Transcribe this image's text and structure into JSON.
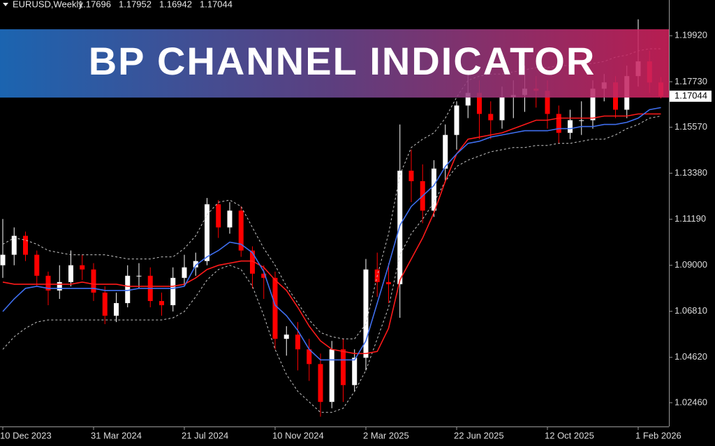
{
  "chart_data": {
    "type": "candlestick",
    "symbol": "EURUSD,Weekly",
    "banner": "BP CHANNEL INDICATOR",
    "background": "#000000",
    "up_color": "#ffffff",
    "down_color": "#ff0000",
    "categories": [
      "10 Dec 2023",
      null,
      null,
      null,
      null,
      null,
      null,
      null,
      "31 Mar 2024",
      null,
      null,
      null,
      null,
      null,
      null,
      null,
      "21 Jul 2024",
      null,
      null,
      null,
      null,
      null,
      null,
      null,
      "10 Nov 2024",
      null,
      null,
      null,
      null,
      null,
      null,
      null,
      "2 Mar 2025",
      null,
      null,
      null,
      null,
      null,
      null,
      null,
      "22 Jun 2025",
      null,
      null,
      null,
      null,
      null,
      null,
      null,
      "12 Oct 2025",
      null,
      null,
      null,
      null,
      null,
      null,
      null,
      "1 Feb 2026",
      null,
      null
    ],
    "open": [
      1.09,
      1.095,
      1.104,
      1.095,
      1.085,
      1.078,
      1.082,
      1.09,
      1.088,
      1.077,
      1.066,
      1.072,
      1.085,
      1.085,
      1.073,
      1.071,
      1.084,
      1.089,
      1.092,
      1.119,
      1.108,
      1.116,
      1.097,
      1.086,
      1.084,
      1.055,
      1.057,
      1.05,
      1.043,
      1.025,
      1.05,
      1.033,
      1.046,
      1.088,
      1.082,
      1.081,
      1.135,
      1.13,
      1.116,
      1.136,
      1.152,
      1.166,
      1.172,
      1.162,
      1.159,
      1.17,
      1.171,
      1.174,
      1.173,
      1.162,
      1.153,
      1.159,
      1.159,
      1.174,
      1.177,
      1.164,
      1.18,
      1.187,
      1.17696
    ],
    "high": [
      1.112,
      1.108,
      1.106,
      1.097,
      1.087,
      1.09,
      1.097,
      1.095,
      1.091,
      1.08,
      1.077,
      1.09,
      1.091,
      1.089,
      1.077,
      1.089,
      1.095,
      1.096,
      1.122,
      1.121,
      1.12,
      1.118,
      1.099,
      1.09,
      1.087,
      1.061,
      1.063,
      1.055,
      1.048,
      1.054,
      1.055,
      1.05,
      1.093,
      1.096,
      1.091,
      1.157,
      1.145,
      1.138,
      1.14,
      1.157,
      1.168,
      1.183,
      1.178,
      1.168,
      1.175,
      1.178,
      1.185,
      1.18,
      1.178,
      1.166,
      1.164,
      1.168,
      1.178,
      1.181,
      1.18,
      1.185,
      1.207,
      1.192,
      1.17952
    ],
    "low": [
      1.084,
      1.09,
      1.092,
      1.08,
      1.071,
      1.074,
      1.08,
      1.083,
      1.073,
      1.062,
      1.063,
      1.07,
      1.079,
      1.07,
      1.066,
      1.068,
      1.08,
      1.085,
      1.09,
      1.103,
      1.105,
      1.094,
      1.079,
      1.074,
      1.05,
      1.047,
      1.04,
      1.035,
      1.018,
      1.022,
      1.025,
      1.03,
      1.04,
      1.075,
      1.072,
      1.065,
      1.12,
      1.11,
      1.113,
      1.13,
      1.145,
      1.16,
      1.15,
      1.15,
      1.155,
      1.16,
      1.163,
      1.165,
      1.155,
      1.148,
      1.15,
      1.152,
      1.155,
      1.168,
      1.16,
      1.16,
      1.175,
      1.172,
      1.16942
    ],
    "close": [
      1.095,
      1.104,
      1.095,
      1.085,
      1.078,
      1.082,
      1.09,
      1.088,
      1.077,
      1.066,
      1.072,
      1.085,
      1.085,
      1.073,
      1.071,
      1.084,
      1.089,
      1.092,
      1.119,
      1.108,
      1.116,
      1.097,
      1.086,
      1.084,
      1.055,
      1.057,
      1.05,
      1.043,
      1.025,
      1.05,
      1.033,
      1.046,
      1.088,
      1.082,
      1.081,
      1.135,
      1.13,
      1.116,
      1.136,
      1.152,
      1.166,
      1.172,
      1.162,
      1.159,
      1.17,
      1.171,
      1.174,
      1.173,
      1.162,
      1.153,
      1.159,
      1.159,
      1.174,
      1.177,
      1.164,
      1.18,
      1.187,
      1.17696,
      1.17044
    ],
    "lines": [
      {
        "color": "#c8c8c8",
        "dashed": true,
        "values": [
          1.1,
          1.103,
          1.102,
          1.1,
          1.097,
          1.096,
          1.095,
          1.095,
          1.095,
          1.095,
          1.094,
          1.093,
          1.093,
          1.093,
          1.094,
          1.094,
          1.098,
          1.104,
          1.114,
          1.12,
          1.121,
          1.118,
          1.108,
          1.098,
          1.09,
          1.08,
          1.072,
          1.064,
          1.058,
          1.056,
          1.055,
          1.055,
          1.062,
          1.085,
          1.105,
          1.133,
          1.146,
          1.15,
          1.153,
          1.16,
          1.17,
          1.178,
          1.18,
          1.181,
          1.181,
          1.182,
          1.183,
          1.184,
          1.184,
          1.185,
          1.185,
          1.186,
          1.186,
          1.187,
          1.189,
          1.19,
          1.192,
          1.193,
          1.193
        ]
      },
      {
        "color": "#c8c8c8",
        "dashed": true,
        "values": [
          1.05,
          1.056,
          1.06,
          1.063,
          1.064,
          1.064,
          1.064,
          1.064,
          1.064,
          1.064,
          1.064,
          1.064,
          1.064,
          1.064,
          1.064,
          1.065,
          1.068,
          1.075,
          1.083,
          1.088,
          1.09,
          1.088,
          1.08,
          1.066,
          1.05,
          1.038,
          1.03,
          1.025,
          1.02,
          1.02,
          1.022,
          1.03,
          1.04,
          1.055,
          1.07,
          1.095,
          1.105,
          1.112,
          1.12,
          1.13,
          1.137,
          1.14,
          1.142,
          1.144,
          1.145,
          1.146,
          1.146,
          1.147,
          1.147,
          1.148,
          1.148,
          1.149,
          1.15,
          1.15,
          1.152,
          1.155,
          1.157,
          1.16,
          1.161
        ]
      },
      {
        "color": "#ff1a1a",
        "dashed": false,
        "values": [
          1.082,
          1.081,
          1.081,
          1.081,
          1.081,
          1.081,
          1.081,
          1.082,
          1.081,
          1.081,
          1.081,
          1.08,
          1.08,
          1.08,
          1.08,
          1.08,
          1.081,
          1.084,
          1.088,
          1.09,
          1.091,
          1.092,
          1.092,
          1.089,
          1.083,
          1.078,
          1.07,
          1.061,
          1.054,
          1.05,
          1.049,
          1.048,
          1.048,
          1.049,
          1.06,
          1.083,
          1.093,
          1.103,
          1.115,
          1.13,
          1.143,
          1.15,
          1.151,
          1.152,
          1.153,
          1.155,
          1.157,
          1.159,
          1.159,
          1.16,
          1.16,
          1.16,
          1.16,
          1.161,
          1.161,
          1.161,
          1.162,
          1.162,
          1.162
        ]
      },
      {
        "color": "#3f6ff0",
        "dashed": false,
        "values": [
          1.068,
          1.074,
          1.079,
          1.08,
          1.079,
          1.079,
          1.079,
          1.079,
          1.079,
          1.078,
          1.078,
          1.078,
          1.079,
          1.079,
          1.079,
          1.079,
          1.08,
          1.09,
          1.094,
          1.097,
          1.101,
          1.1,
          1.096,
          1.087,
          1.071,
          1.066,
          1.059,
          1.05,
          1.045,
          1.045,
          1.045,
          1.045,
          1.054,
          1.072,
          1.09,
          1.109,
          1.118,
          1.123,
          1.128,
          1.137,
          1.143,
          1.148,
          1.149,
          1.151,
          1.152,
          1.153,
          1.154,
          1.154,
          1.154,
          1.155,
          1.155,
          1.156,
          1.156,
          1.157,
          1.157,
          1.158,
          1.16,
          1.164,
          1.165
        ]
      }
    ],
    "ylim": [
      1.0133,
      1.2162
    ],
    "yticks": [
      {
        "value": 1.0246,
        "label": "1.02460"
      },
      {
        "value": 1.0462,
        "label": "1.04620"
      },
      {
        "value": 1.0681,
        "label": "1.06810"
      },
      {
        "value": 1.09,
        "label": "1.09000"
      },
      {
        "value": 1.1119,
        "label": "1.11190"
      },
      {
        "value": 1.1338,
        "label": "1.13380"
      },
      {
        "value": 1.1557,
        "label": "1.15570"
      },
      {
        "value": 1.1773,
        "label": "1.17730"
      },
      {
        "value": 1.1992,
        "label": "1.19920"
      }
    ]
  }
}
